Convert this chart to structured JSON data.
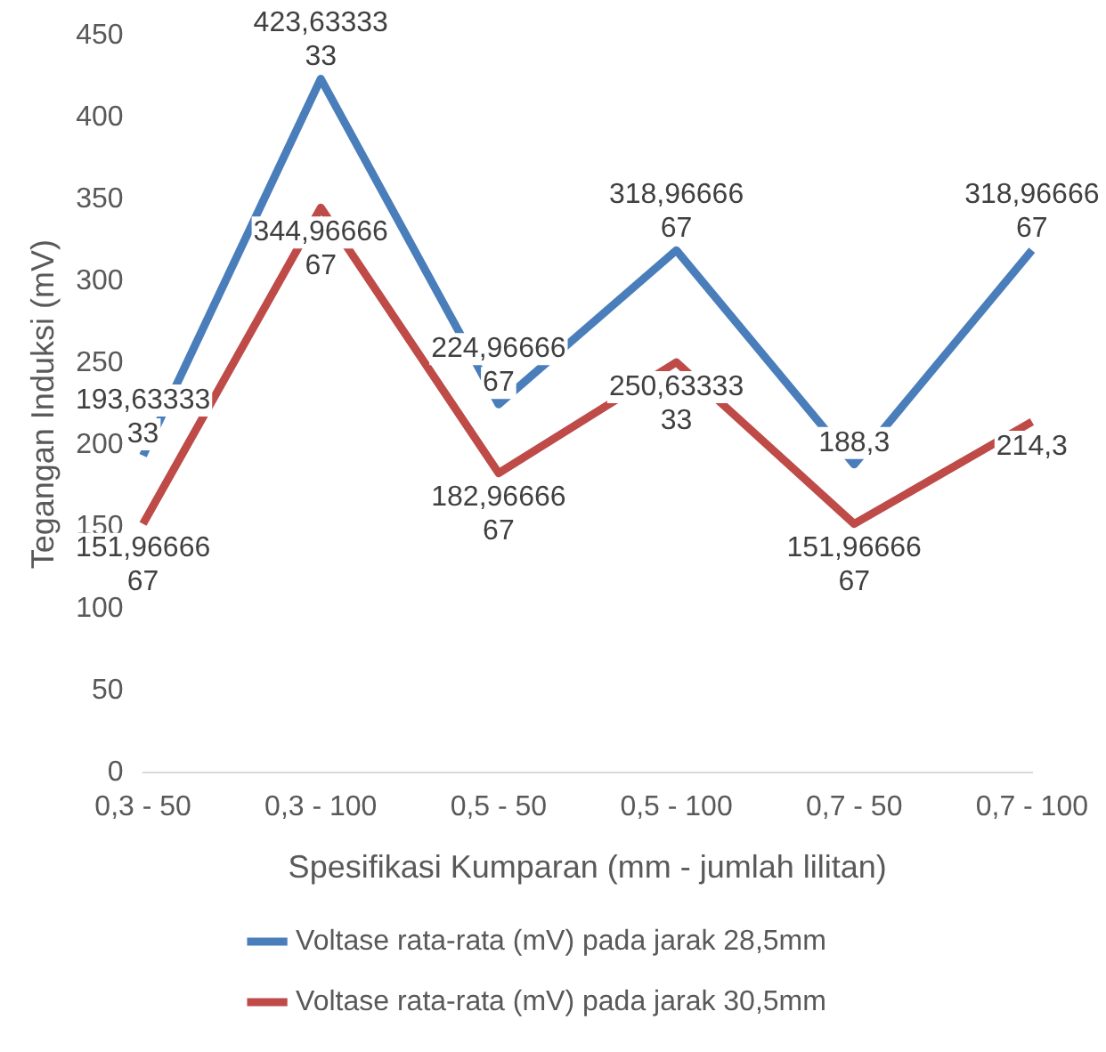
{
  "chart_data": {
    "type": "line",
    "xlabel": "Spesifikasi Kumparan (mm - jumlah lilitan)",
    "ylabel": "Tegangan Induksi (mV)",
    "categories": [
      "0,3 - 50",
      "0,3 - 100",
      "0,5 - 50",
      "0,5 - 100",
      "0,7 - 50",
      "0,7 - 100"
    ],
    "series": [
      {
        "name": "Voltase rata-rata (mV) pada jarak 28,5mm",
        "color": "#4a7ebb",
        "values": [
          193.6333333,
          423.6333333,
          224.9666667,
          318.9666667,
          188.3,
          318.9666667
        ],
        "value_labels": [
          "193,6333333",
          "423,6333333",
          "224,9666667",
          "318,9666667",
          "188,3",
          "318,9666667"
        ]
      },
      {
        "name": "Voltase rata-rata (mV) pada jarak 30,5mm",
        "color": "#be4b48",
        "values": [
          151.9666667,
          344.9666667,
          182.9666667,
          250.6333333,
          151.9666667,
          214.3
        ],
        "value_labels": [
          "151,9666667",
          "344,9666667",
          "182,9666667",
          "250,6333333",
          "151,9666667",
          "214,3"
        ]
      }
    ],
    "ylim": [
      0,
      450
    ],
    "yticks": [
      0,
      50,
      100,
      150,
      200,
      250,
      300,
      350,
      400,
      450
    ],
    "grid": false,
    "legend": "bottom",
    "marker": "none",
    "line_style": "solid"
  }
}
